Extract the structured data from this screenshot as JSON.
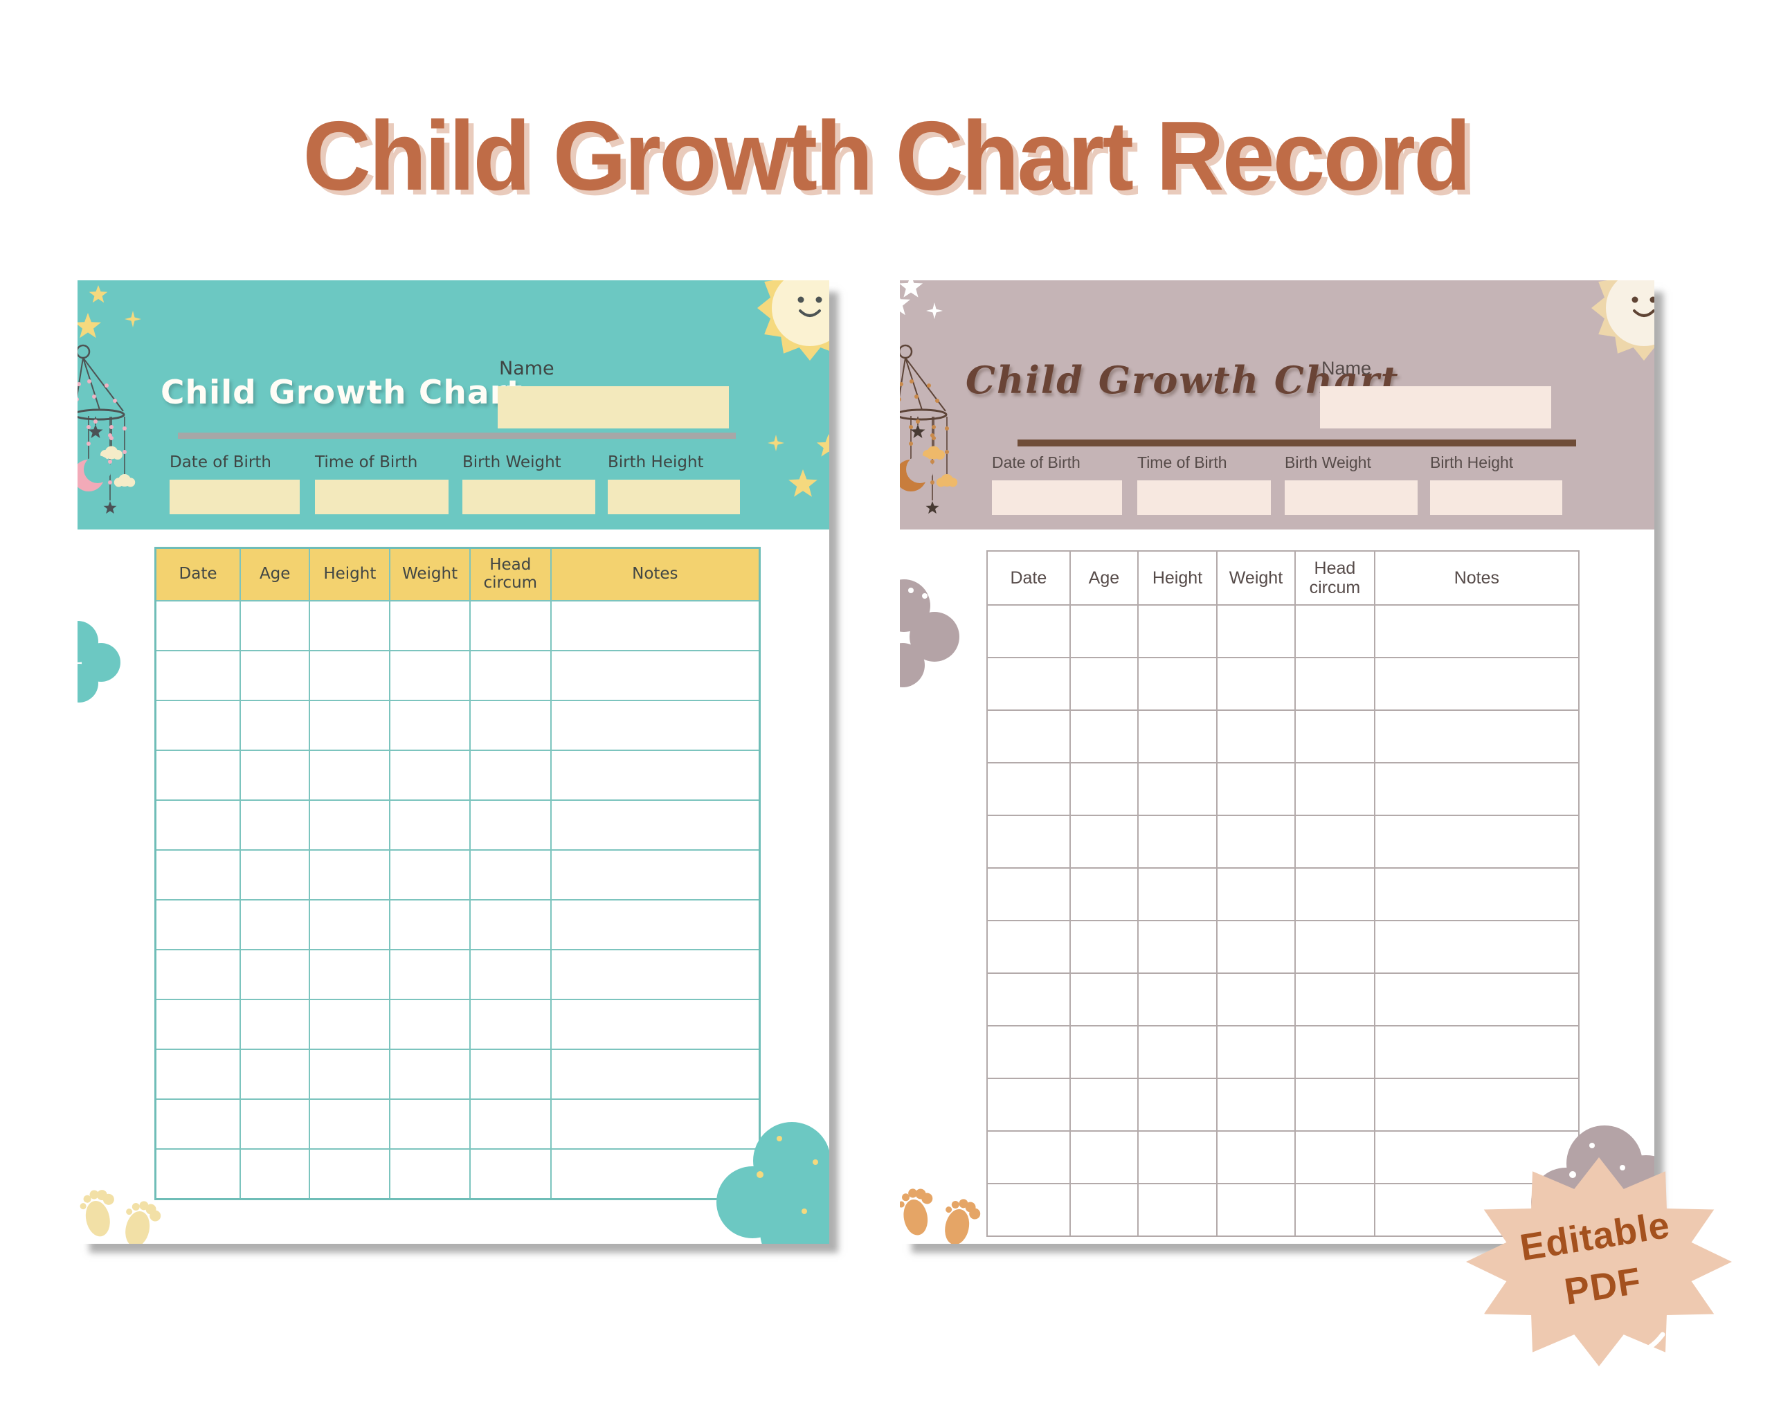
{
  "page_title": "Child Growth Chart Record",
  "badge": {
    "line1": "Editable",
    "line2": "PDF"
  },
  "templates": [
    {
      "theme": "teal",
      "title": "Child Growth Chart",
      "name_label": "Name",
      "fields": [
        {
          "label": "Date of Birth"
        },
        {
          "label": "Time of Birth"
        },
        {
          "label": "Birth Weight"
        },
        {
          "label": "Birth Height"
        }
      ],
      "table": {
        "columns": [
          "Date",
          "Age",
          "Height",
          "Weight",
          "Head circum",
          "Notes"
        ],
        "row_count": 12
      },
      "decorations": [
        "sun-icon",
        "stars",
        "baby-mobile-icon",
        "moon-icon",
        "clouds",
        "footprints-icon"
      ]
    },
    {
      "theme": "mauve",
      "title": "Child Growth Chart",
      "name_label": "Name",
      "fields": [
        {
          "label": "Date of Birth"
        },
        {
          "label": "Time of Birth"
        },
        {
          "label": "Birth Weight"
        },
        {
          "label": "Birth Height"
        }
      ],
      "table": {
        "columns": [
          "Date",
          "Age",
          "Height",
          "Weight",
          "Head circum",
          "Notes"
        ],
        "row_count": 12
      },
      "decorations": [
        "sun-icon",
        "stars",
        "baby-mobile-icon",
        "moon-icon",
        "clouds",
        "footprints-icon"
      ]
    }
  ],
  "colors": {
    "title": "#bf6c47",
    "title_shadow": "#e9cbbc",
    "teal": "#6cc8c2",
    "teal_table_line": "#6fbdb7",
    "yellow_header": "#f3d26f",
    "cream_box": "#f3e9bc",
    "mauve": "#c5b4b6",
    "pink_box": "#f7e8e0",
    "brown": "#6f4d38",
    "badge_bg": "#eec9b0",
    "badge_text": "#a4511e"
  }
}
